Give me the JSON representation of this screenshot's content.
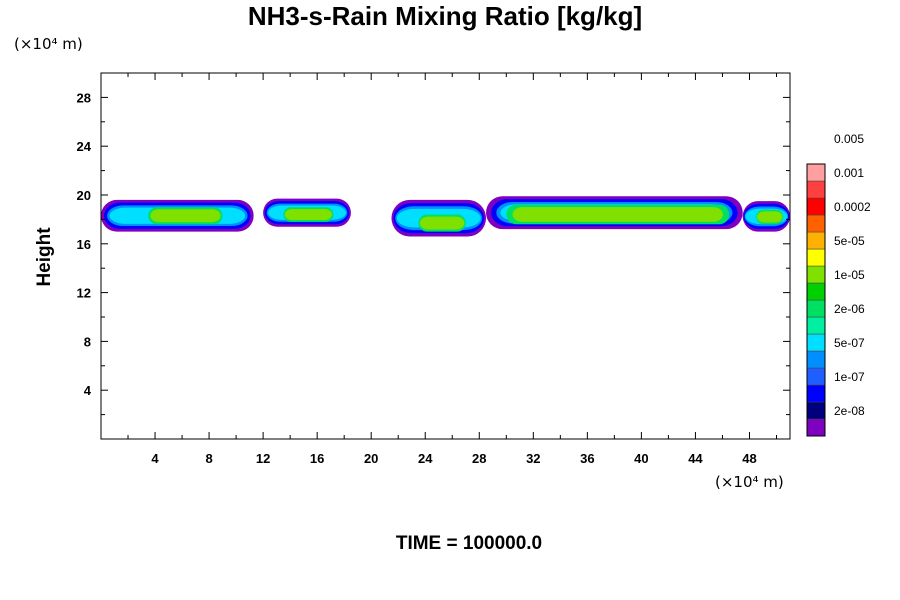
{
  "chart_data": {
    "type": "heatmap",
    "title": "NH3-s-Rain Mixing Ratio [kg/kg]",
    "xlabel": "",
    "ylabel": "Height",
    "x_unit": "(×10⁴ m)",
    "y_unit": "(×10⁴ m)",
    "xlim": [
      0,
      51
    ],
    "ylim": [
      0,
      30
    ],
    "x_ticks": [
      4,
      8,
      12,
      16,
      20,
      24,
      28,
      32,
      36,
      40,
      44,
      48
    ],
    "y_ticks": [
      4,
      8,
      12,
      16,
      20,
      24,
      28
    ],
    "footer": "TIME = 100000.0",
    "colorbar": {
      "colors": [
        "#7f00bf",
        "#00007f",
        "#0000ff",
        "#1f5fff",
        "#008fff",
        "#00dfff",
        "#00efa0",
        "#00e060",
        "#00d000",
        "#80e000",
        "#ffff00",
        "#ffb000",
        "#ff6000",
        "#ff0000",
        "#ff4040",
        "#ff9f9f"
      ],
      "labels": [
        "2e-08",
        "1e-07",
        "5e-07",
        "2e-06",
        "1e-05",
        "5e-05",
        "0.0002",
        "0.001",
        "0.005"
      ]
    },
    "regions": [
      {
        "x": [
          0,
          11.3
        ],
        "y": [
          17.0,
          19.6
        ],
        "level": "low"
      },
      {
        "x": [
          3.5,
          9
        ],
        "y": [
          17.6,
          19.0
        ],
        "level": "mid"
      },
      {
        "x": [
          12,
          18.5
        ],
        "y": [
          17.4,
          19.7
        ],
        "level": "low"
      },
      {
        "x": [
          13.5,
          17.2
        ],
        "y": [
          17.8,
          19.0
        ],
        "level": "mid"
      },
      {
        "x": [
          21.5,
          28.5
        ],
        "y": [
          16.6,
          19.6
        ],
        "level": "low"
      },
      {
        "x": [
          23.5,
          27
        ],
        "y": [
          17.0,
          18.4
        ],
        "level": "mid"
      },
      {
        "x": [
          28.5,
          47.5
        ],
        "y": [
          17.2,
          19.9
        ],
        "level": "low"
      },
      {
        "x": [
          30,
          46.5
        ],
        "y": [
          17.6,
          19.2
        ],
        "level": "mid"
      },
      {
        "x": [
          47.5,
          51
        ],
        "y": [
          17.0,
          19.5
        ],
        "level": "low"
      },
      {
        "x": [
          48.5,
          50.5
        ],
        "y": [
          17.6,
          18.8
        ],
        "level": "mid"
      }
    ]
  }
}
